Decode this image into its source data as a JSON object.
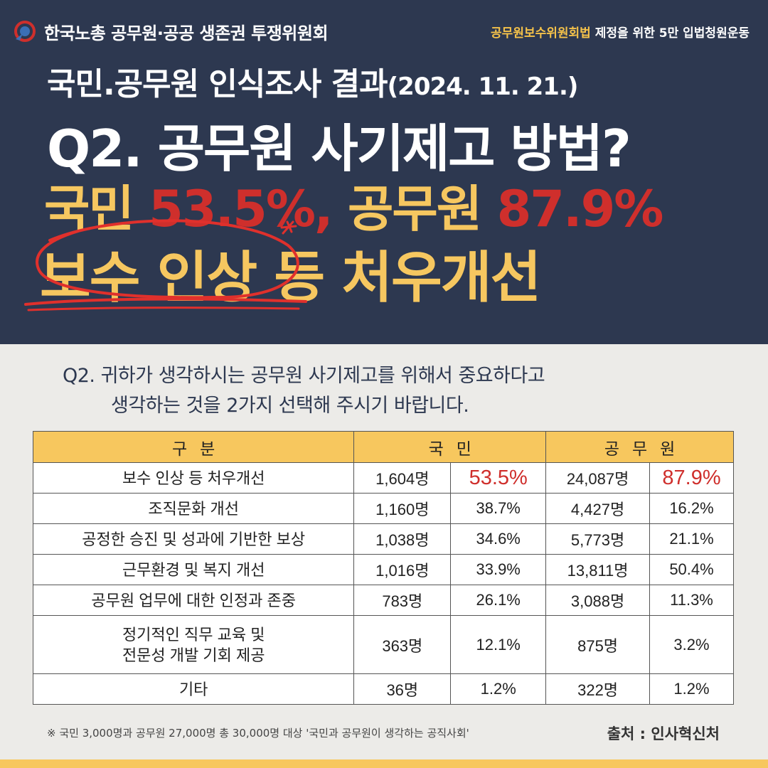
{
  "header": {
    "org_name": "한국노총 공무원·공공 생존권 투쟁위원회",
    "campaign_highlight": "공무원보수위원회법",
    "campaign_rest": " 제정을 위한 5만 입법청원운동"
  },
  "hero": {
    "survey_title": "국민.공무원 인식조사 결과",
    "survey_date": "(2024. 11. 21.)",
    "question_title": "Q2. 공무원 사기제고 방법?",
    "result_label_citizen": "국민 ",
    "result_pct_citizen": "53.5%,",
    "result_label_official": " 공무원 ",
    "result_pct_official": "87.9%",
    "result_line2": "보수 인상 등 처우개선"
  },
  "question": {
    "line1": "Q2. 귀하가 생각하시는 공무원 사기제고를 위해서 중요하다고",
    "line2": "생각하는 것을 2가지 선택해 주시기 바랍니다."
  },
  "table": {
    "headers": [
      "구분",
      "국민",
      "공무원"
    ],
    "rows": [
      {
        "category": "보수 인상 등 처우개선",
        "citizen_count": "1,604명",
        "citizen_pct": "53.5%",
        "official_count": "24,087명",
        "official_pct": "87.9%"
      },
      {
        "category": "조직문화 개선",
        "citizen_count": "1,160명",
        "citizen_pct": "38.7%",
        "official_count": "4,427명",
        "official_pct": "16.2%"
      },
      {
        "category": "공정한 승진 및 성과에 기반한 보상",
        "citizen_count": "1,038명",
        "citizen_pct": "34.6%",
        "official_count": "5,773명",
        "official_pct": "21.1%"
      },
      {
        "category": "근무환경 및 복지 개선",
        "citizen_count": "1,016명",
        "citizen_pct": "33.9%",
        "official_count": "13,811명",
        "official_pct": "50.4%"
      },
      {
        "category": "공무원 업무에 대한 인정과 존중",
        "citizen_count": "783명",
        "citizen_pct": "26.1%",
        "official_count": "3,088명",
        "official_pct": "11.3%"
      },
      {
        "category_line1": "정기적인 직무 교육 및",
        "category_line2": "전문성 개발 기회 제공",
        "citizen_count": "363명",
        "citizen_pct": "12.1%",
        "official_count": "875명",
        "official_pct": "3.2%"
      },
      {
        "category": "기타",
        "citizen_count": "36명",
        "citizen_pct": "1.2%",
        "official_count": "322명",
        "official_pct": "1.2%"
      }
    ]
  },
  "footer": {
    "footnote": "※ 국민 3,000명과 공무원 27,000명 총 30,000명 대상 '국민과 공무원이 생각하는 공직사회'",
    "source": "출처 : 인사혁신처"
  },
  "colors": {
    "navy": "#2d3850",
    "yellow": "#f6c760",
    "red": "#cf2f2c",
    "header_yellow": "#f7c75e"
  }
}
